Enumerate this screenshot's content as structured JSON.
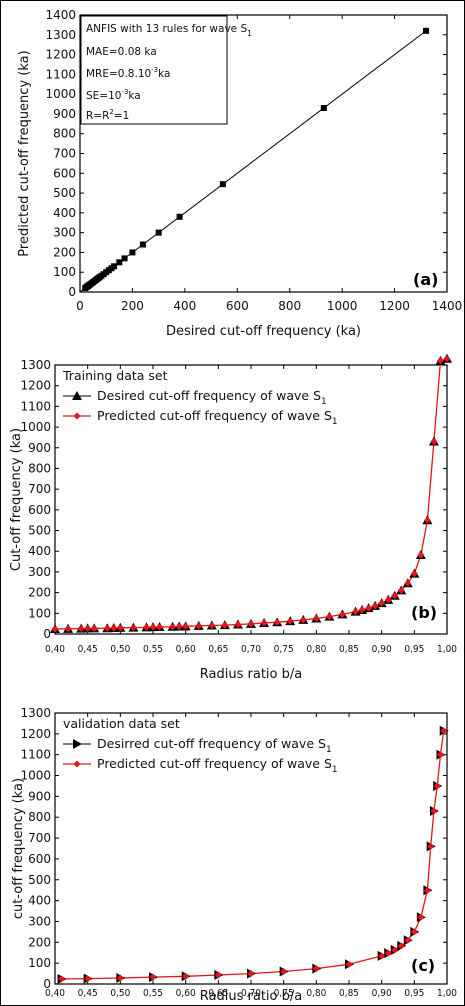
{
  "chart_data": [
    {
      "type": "scatter",
      "panel_label": "(a)",
      "xlabel": "Desired cut-off frequency (ka)",
      "ylabel": "Predicted cut-off frequency (ka)",
      "xlim": [
        0,
        1400
      ],
      "ylim": [
        0,
        1400
      ],
      "xticks": [
        "0",
        "200",
        "400",
        "600",
        "800",
        "1000",
        "1200",
        "1400"
      ],
      "yticks": [
        "0",
        "100",
        "200",
        "300",
        "400",
        "500",
        "600",
        "700",
        "800",
        "900",
        "1000",
        "1100",
        "1200",
        "1300",
        "1400"
      ],
      "annotation": [
        "ANFIS with 13 rules for wave S1",
        "MAE=0.08 ka",
        "MRE=0.8.10⁻³ka",
        "SE=10⁻³ka",
        "R=R²=1"
      ],
      "line": {
        "x": [
          0,
          1330
        ],
        "y": [
          0,
          1330
        ]
      },
      "points": {
        "x": [
          20,
          25,
          28,
          30,
          33,
          36,
          40,
          45,
          50,
          55,
          60,
          65,
          70,
          75,
          82,
          90,
          100,
          110,
          120,
          130,
          150,
          170,
          200,
          240,
          300,
          380,
          545,
          930,
          1320
        ],
        "y": [
          20,
          25,
          28,
          30,
          33,
          36,
          40,
          45,
          50,
          55,
          60,
          65,
          70,
          75,
          82,
          90,
          100,
          110,
          120,
          130,
          150,
          170,
          200,
          240,
          300,
          380,
          545,
          930,
          1320
        ]
      }
    },
    {
      "type": "line",
      "panel_label": "(b)",
      "xlabel": "Radius ratio b/a",
      "ylabel": "Cut-off frequency (ka)",
      "xlim": [
        0.4,
        1.0
      ],
      "ylim": [
        0,
        1300
      ],
      "xticks": [
        "0,40",
        "0,45",
        "0,50",
        "0,55",
        "0,60",
        "0,65",
        "0,70",
        "0,75",
        "0,80",
        "0,85",
        "0,90",
        "0,95",
        "1,00"
      ],
      "yticks": [
        "0",
        "100",
        "200",
        "300",
        "400",
        "500",
        "600",
        "700",
        "800",
        "900",
        "1000",
        "1100",
        "1200",
        "1300"
      ],
      "legend_title": "Training data set",
      "series": [
        {
          "name": "Desired cut-off frequency of wave S1",
          "marker": "triangle-up",
          "color": "#000000",
          "x": [
            0.4,
            0.42,
            0.44,
            0.45,
            0.46,
            0.48,
            0.49,
            0.5,
            0.52,
            0.54,
            0.55,
            0.56,
            0.58,
            0.59,
            0.6,
            0.62,
            0.64,
            0.66,
            0.68,
            0.7,
            0.72,
            0.74,
            0.76,
            0.78,
            0.8,
            0.82,
            0.84,
            0.86,
            0.87,
            0.88,
            0.89,
            0.9,
            0.91,
            0.92,
            0.93,
            0.94,
            0.95,
            0.96,
            0.97,
            0.98,
            0.99,
            1.0
          ],
          "y": [
            24,
            25,
            26,
            27,
            27,
            28,
            29,
            30,
            31,
            32,
            33,
            34,
            35,
            36,
            37,
            39,
            41,
            43,
            46,
            49,
            53,
            57,
            62,
            68,
            75,
            84,
            95,
            108,
            116,
            125,
            136,
            149,
            165,
            185,
            211,
            245,
            292,
            382,
            550,
            930,
            1320,
            1330
          ]
        },
        {
          "name": "Predicted cut-off frequency of wave S1",
          "marker": "diamond",
          "color": "#e8141b",
          "x": [
            0.4,
            0.42,
            0.44,
            0.45,
            0.46,
            0.48,
            0.49,
            0.5,
            0.52,
            0.54,
            0.55,
            0.56,
            0.58,
            0.59,
            0.6,
            0.62,
            0.64,
            0.66,
            0.68,
            0.7,
            0.72,
            0.74,
            0.76,
            0.78,
            0.8,
            0.82,
            0.84,
            0.86,
            0.87,
            0.88,
            0.89,
            0.9,
            0.91,
            0.92,
            0.93,
            0.94,
            0.95,
            0.96,
            0.97,
            0.98,
            0.99,
            1.0
          ],
          "y": [
            24,
            25,
            26,
            27,
            27,
            28,
            29,
            30,
            31,
            32,
            33,
            34,
            35,
            36,
            37,
            39,
            41,
            43,
            46,
            49,
            53,
            57,
            62,
            68,
            75,
            84,
            95,
            108,
            116,
            125,
            136,
            149,
            165,
            185,
            211,
            245,
            292,
            382,
            550,
            930,
            1320,
            1330
          ]
        }
      ]
    },
    {
      "type": "line",
      "panel_label": "(c)",
      "xlabel": "Radius ratio b/a",
      "ylabel": "cut-off frequency (ka)",
      "xlim": [
        0.4,
        1.0
      ],
      "ylim": [
        0,
        1300
      ],
      "xticks": [
        "0,40",
        "0,45",
        "0,50",
        "0,55",
        "0,60",
        "0,65",
        "0,70",
        "0,75",
        "0,80",
        "0,85",
        "0,90",
        "0,95",
        "1,00"
      ],
      "yticks": [
        "0",
        "100",
        "200",
        "300",
        "400",
        "500",
        "600",
        "700",
        "800",
        "900",
        "1000",
        "1100",
        "1200",
        "1300"
      ],
      "legend_title": "validation data set",
      "series": [
        {
          "name": "Desirred cut-off frequency of wave S1",
          "marker": "triangle-right",
          "color": "#000000",
          "x": [
            0.41,
            0.45,
            0.5,
            0.55,
            0.6,
            0.65,
            0.7,
            0.75,
            0.8,
            0.85,
            0.9,
            0.91,
            0.92,
            0.93,
            0.94,
            0.95,
            0.96,
            0.97,
            0.975,
            0.98,
            0.985,
            0.99,
            0.995
          ],
          "y": [
            24,
            26,
            29,
            33,
            37,
            43,
            50,
            60,
            74,
            95,
            135,
            148,
            163,
            183,
            210,
            250,
            320,
            450,
            660,
            830,
            950,
            1100,
            1215
          ]
        },
        {
          "name": "Predicted cut-off frequency of wave S1",
          "marker": "diamond",
          "color": "#e8141b",
          "x": [
            0.41,
            0.45,
            0.5,
            0.55,
            0.6,
            0.65,
            0.7,
            0.75,
            0.8,
            0.85,
            0.9,
            0.91,
            0.92,
            0.93,
            0.94,
            0.95,
            0.96,
            0.97,
            0.975,
            0.98,
            0.985,
            0.99,
            0.995
          ],
          "y": [
            24,
            26,
            29,
            33,
            37,
            43,
            50,
            60,
            74,
            95,
            135,
            148,
            163,
            183,
            210,
            250,
            320,
            450,
            660,
            830,
            950,
            1100,
            1215
          ]
        }
      ]
    }
  ]
}
